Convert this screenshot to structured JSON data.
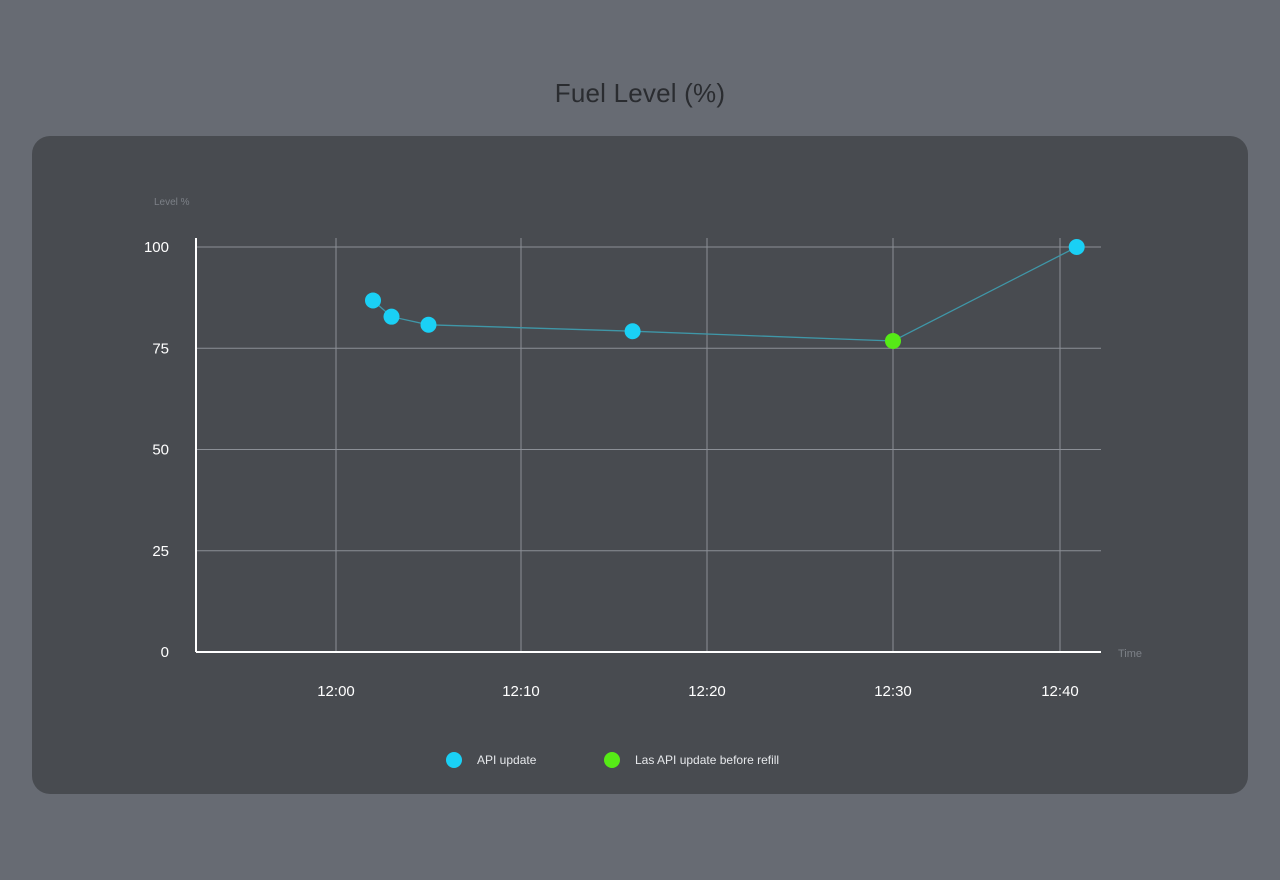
{
  "page": {
    "title": "Fuel Level (%)"
  },
  "colors": {
    "background": "#676b73",
    "card": "#484b50",
    "grid": "#8b8f96",
    "axis": "#ffffff",
    "line": "#3f97a8",
    "api_update": "#1ad0f5",
    "last_before_refill": "#56ea16"
  },
  "chart_data": {
    "type": "scatter",
    "title": "Fuel Level (%)",
    "ylabel": "Level %",
    "xlabel": "Time",
    "ylim": [
      0,
      100
    ],
    "yticks": [
      0,
      25,
      50,
      75,
      100
    ],
    "xticks": [
      "12:00",
      "12:10",
      "12:20",
      "12:30",
      "12:40"
    ],
    "grid": true,
    "legend_position": "bottom-center",
    "series": [
      {
        "name": "API update",
        "color": "#1ad0f5",
        "points": [
          {
            "x": "12:02",
            "y": 86.8
          },
          {
            "x": "12:03",
            "y": 82.8
          },
          {
            "x": "12:05",
            "y": 80.8
          },
          {
            "x": "12:16",
            "y": 79.2
          },
          {
            "x": "12:41",
            "y": 100
          }
        ]
      },
      {
        "name": "Las API update before refill",
        "color": "#56ea16",
        "points": [
          {
            "x": "12:30",
            "y": 76.8
          }
        ]
      }
    ],
    "connecting_line_order": [
      "12:02",
      "12:03",
      "12:05",
      "12:16",
      "12:30",
      "12:41"
    ]
  }
}
